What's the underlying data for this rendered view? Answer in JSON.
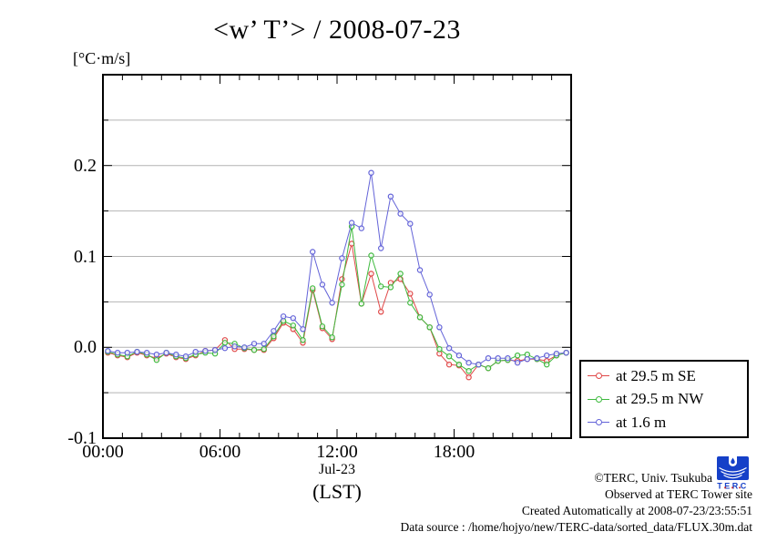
{
  "chart_data": {
    "type": "line",
    "title": "<w’ T’> / 2008-07-23",
    "ylabel": "[°C·m/s]",
    "xlabel_line1": "Jul-23",
    "xlabel_line2": "(LST)",
    "ylim": [
      -0.1,
      0.3
    ],
    "xlim_hours": [
      0,
      24
    ],
    "grid": true,
    "grid_values": [
      -0.05,
      0.0,
      0.05,
      0.1,
      0.15,
      0.2,
      0.25
    ],
    "yticks": [
      {
        "value": 0.2,
        "label": "0.2"
      },
      {
        "value": 0.1,
        "label": "0.1"
      },
      {
        "value": 0.0,
        "label": "0.0"
      },
      {
        "value": -0.1,
        "label": "-0.1"
      }
    ],
    "xticks": [
      {
        "hour": 0,
        "label": "00:00"
      },
      {
        "hour": 6,
        "label": "06:00"
      },
      {
        "hour": 12,
        "label": "12:00"
      },
      {
        "hour": 18,
        "label": "18:00"
      }
    ],
    "legend_position": "outside-right",
    "x_hours": [
      0.25,
      0.75,
      1.25,
      1.75,
      2.25,
      2.75,
      3.25,
      3.75,
      4.25,
      4.75,
      5.25,
      5.75,
      6.25,
      6.75,
      7.25,
      7.75,
      8.25,
      8.75,
      9.25,
      9.75,
      10.25,
      10.75,
      11.25,
      11.75,
      12.25,
      12.75,
      13.25,
      13.75,
      14.25,
      14.75,
      15.25,
      15.75,
      16.25,
      16.75,
      17.25,
      17.75,
      18.25,
      18.75,
      19.25,
      19.75,
      20.25,
      20.75,
      21.25,
      21.75,
      22.25,
      22.75,
      23.25,
      23.75
    ],
    "series": [
      {
        "name": "at 29.5 m SE",
        "color": "#e04848",
        "values": [
          -0.006,
          -0.009,
          -0.011,
          -0.006,
          -0.009,
          -0.012,
          -0.007,
          -0.011,
          -0.013,
          -0.009,
          -0.004,
          -0.003,
          0.008,
          -0.002,
          -0.002,
          -0.003,
          -0.003,
          0.01,
          0.027,
          0.02,
          0.005,
          0.063,
          0.021,
          0.009,
          0.075,
          0.114,
          0.048,
          0.081,
          0.039,
          0.071,
          0.075,
          0.059,
          0.033,
          0.022,
          -0.007,
          -0.019,
          -0.02,
          -0.033,
          -0.019,
          -0.023,
          -0.015,
          -0.014,
          -0.015,
          -0.013,
          -0.013,
          -0.015,
          -0.009,
          -0.006
        ]
      },
      {
        "name": "at 29.5 m NW",
        "color": "#3fba3f",
        "values": [
          -0.005,
          -0.008,
          -0.01,
          -0.005,
          -0.008,
          -0.014,
          -0.006,
          -0.01,
          -0.012,
          -0.008,
          -0.006,
          -0.007,
          0.005,
          0.004,
          -0.001,
          -0.003,
          -0.002,
          0.012,
          0.029,
          0.024,
          0.008,
          0.065,
          0.023,
          0.011,
          0.069,
          0.133,
          0.048,
          0.101,
          0.067,
          0.066,
          0.081,
          0.049,
          0.033,
          0.022,
          -0.002,
          -0.01,
          -0.019,
          -0.026,
          -0.019,
          -0.023,
          -0.015,
          -0.014,
          -0.009,
          -0.008,
          -0.013,
          -0.019,
          -0.009,
          -0.006
        ]
      },
      {
        "name": "at 1.6 m",
        "color": "#6363d8",
        "values": [
          -0.004,
          -0.006,
          -0.006,
          -0.005,
          -0.006,
          -0.008,
          -0.006,
          -0.008,
          -0.01,
          -0.005,
          -0.004,
          -0.003,
          -0.001,
          0.001,
          0.0,
          0.004,
          0.004,
          0.018,
          0.034,
          0.032,
          0.02,
          0.105,
          0.069,
          0.049,
          0.098,
          0.137,
          0.131,
          0.192,
          0.109,
          0.166,
          0.147,
          0.136,
          0.085,
          0.058,
          0.022,
          -0.001,
          -0.009,
          -0.017,
          -0.019,
          -0.012,
          -0.012,
          -0.012,
          -0.017,
          -0.013,
          -0.012,
          -0.009,
          -0.007,
          -0.006
        ]
      }
    ]
  },
  "footer": {
    "lines": [
      "©TERC, Univ. Tsukuba",
      "Observed at TERC Tower site",
      "Created Automatically at 2008-07-23/23:55:51",
      "Data source : /home/hojyo/new/TERC-data/sorted_data/FLUX.30m.dat"
    ]
  },
  "logo": {
    "text": "TERC",
    "color": "#1540c8",
    "accent_color": "#cc2222"
  }
}
